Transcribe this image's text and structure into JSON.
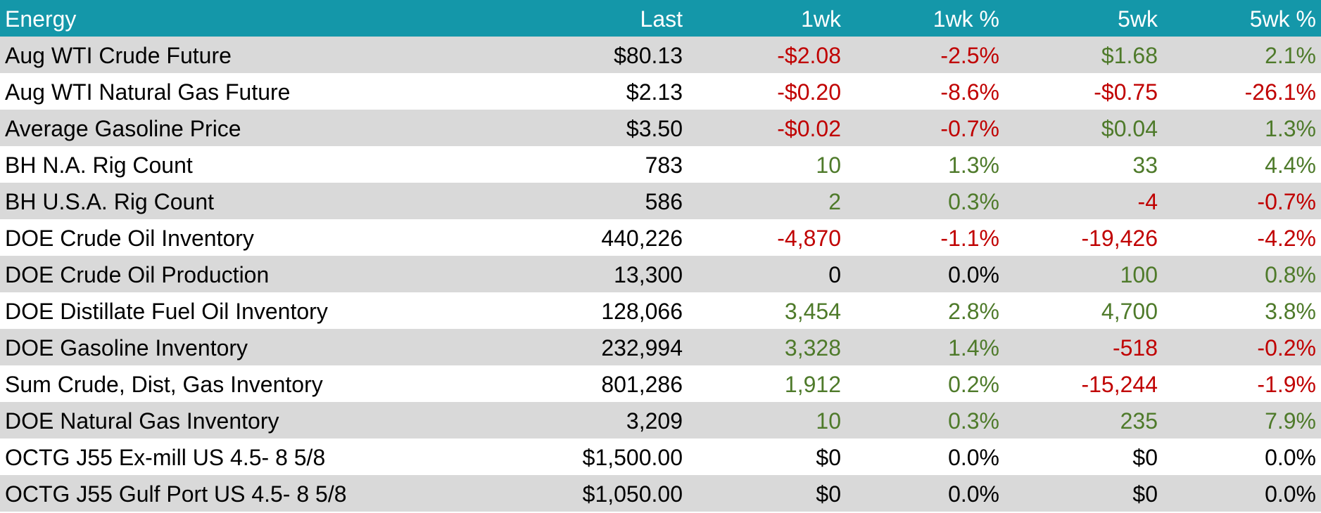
{
  "table": {
    "header": [
      "Energy",
      "Last",
      "1wk",
      "1wk %",
      "5wk",
      "5wk %"
    ],
    "rows": [
      [
        "Aug WTI Crude Future",
        "$80.13",
        "-$2.08",
        "-2.5%",
        "$1.68",
        "2.1%"
      ],
      [
        "Aug WTI Natural Gas Future",
        "$2.13",
        "-$0.20",
        "-8.6%",
        "-$0.75",
        "-26.1%"
      ],
      [
        "Average Gasoline Price",
        "$3.50",
        "-$0.02",
        "-0.7%",
        "$0.04",
        "1.3%"
      ],
      [
        "BH N.A. Rig Count",
        "783",
        "10",
        "1.3%",
        "33",
        "4.4%"
      ],
      [
        "BH U.S.A. Rig Count",
        "586",
        "2",
        "0.3%",
        "-4",
        "-0.7%"
      ],
      [
        "DOE Crude Oil Inventory",
        "440,226",
        "-4,870",
        "-1.1%",
        "-19,426",
        "-4.2%"
      ],
      [
        "DOE Crude Oil Production",
        "13,300",
        "0",
        "0.0%",
        "100",
        "0.8%"
      ],
      [
        "DOE Distillate Fuel Oil Inventory",
        "128,066",
        "3,454",
        "2.8%",
        "4,700",
        "3.8%"
      ],
      [
        "DOE Gasoline Inventory",
        "232,994",
        "3,328",
        "1.4%",
        "-518",
        "-0.2%"
      ],
      [
        "Sum Crude, Dist, Gas Inventory",
        "801,286",
        "1,912",
        "0.2%",
        "-15,244",
        "-1.9%"
      ],
      [
        "DOE Natural Gas Inventory",
        "3,209",
        "10",
        "0.3%",
        "235",
        "7.9%"
      ],
      [
        "OCTG J55 Ex-mill US 4.5- 8 5/8",
        "$1,500.00",
        "$0",
        "0.0%",
        "$0",
        "0.0%"
      ],
      [
        "OCTG J55 Gulf Port US 4.5- 8 5/8",
        "$1,050.00",
        "$0",
        "0.0%",
        "$0",
        "0.0%"
      ]
    ]
  }
}
